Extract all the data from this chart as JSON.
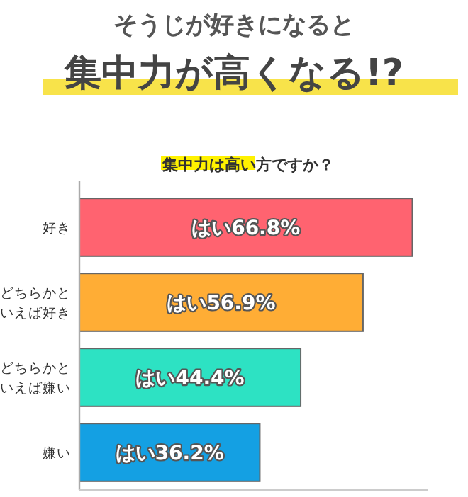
{
  "chart_data": {
    "type": "bar",
    "orientation": "horizontal",
    "title": "そうじが好きになると",
    "subtitle": "集中力が高くなる!?",
    "annotations": [
      "集中力は高い方ですか？"
    ],
    "categories": [
      "好き",
      "どちらかといえば好き",
      "どちらかといえば嫌い",
      "嫌い"
    ],
    "values": [
      66.8,
      56.9,
      44.4,
      36.2
    ],
    "colors": [
      "#ff6370",
      "#ffad35",
      "#2de2c3",
      "#14a0e3"
    ],
    "value_labels": [
      "はい66.8%",
      "はい56.9%",
      "はい44.4%",
      "はい36.2%"
    ],
    "xlim": [
      0,
      70
    ],
    "tick_labels": "y"
  }
}
